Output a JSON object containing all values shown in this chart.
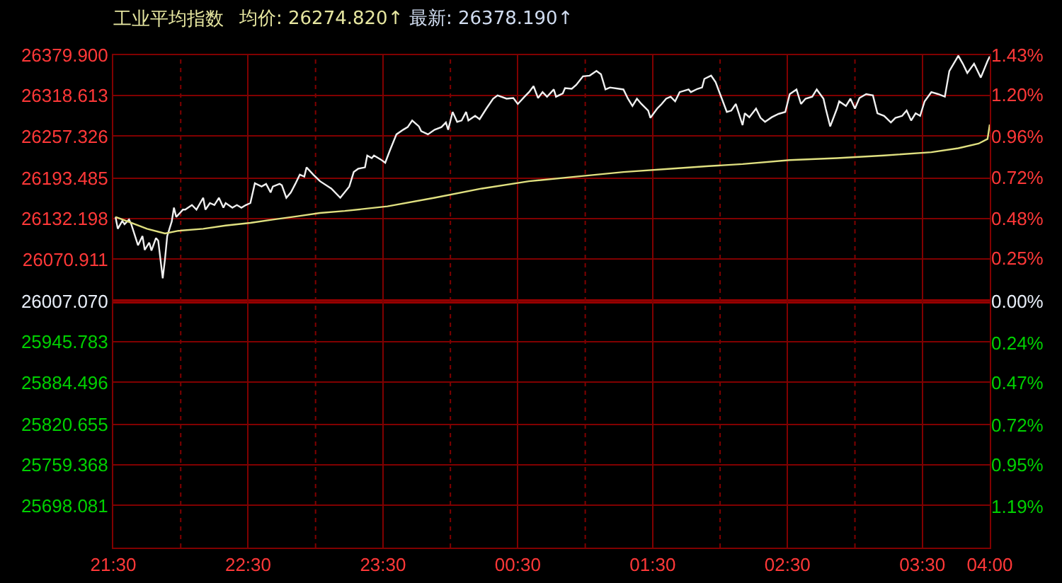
{
  "chart_data": {
    "type": "line",
    "title": "工业平均指数",
    "annotations": [
      "均价: 26274.820↑",
      "最新: 26378.190↑"
    ],
    "series": [
      {
        "color": "#f0f0f0",
        "x": [
          "2000-01-01T21:31",
          "2000-01-01T21:32",
          "2000-01-01T21:34",
          "2000-01-01T21:35",
          "2000-01-01T21:37",
          "2000-01-01T21:38",
          "2000-01-01T21:41",
          "2000-01-01T21:43",
          "2000-01-01T21:44",
          "2000-01-01T21:46",
          "2000-01-01T21:47",
          "2000-01-01T21:49",
          "2000-01-01T21:50",
          "2000-01-01T21:52",
          "2000-01-01T21:53",
          "2000-01-01T21:54",
          "2000-01-01T21:56",
          "2000-01-01T21:57",
          "2000-01-01T21:58",
          "2000-01-01T22:01",
          "2000-01-01T22:02",
          "2000-01-01T22:05",
          "2000-01-01T22:07",
          "2000-01-01T22:10",
          "2000-01-01T22:11",
          "2000-01-01T22:13",
          "2000-01-01T22:15",
          "2000-01-01T22:17",
          "2000-01-01T22:19",
          "2000-01-01T22:20",
          "2000-01-01T22:23",
          "2000-01-01T22:25",
          "2000-01-01T22:27",
          "2000-01-01T22:29",
          "2000-01-01T22:31",
          "2000-01-01T22:33",
          "2000-01-01T22:36",
          "2000-01-01T22:38",
          "2000-01-01T22:40",
          "2000-01-01T22:41",
          "2000-01-01T22:44",
          "2000-01-01T22:45",
          "2000-01-01T22:47",
          "2000-01-01T22:49",
          "2000-01-01T22:51",
          "2000-01-01T22:53",
          "2000-01-01T22:55",
          "2000-01-01T22:56",
          "2000-01-01T22:59",
          "2000-01-01T23:02",
          "2000-01-01T23:07",
          "2000-01-01T23:11",
          "2000-01-01T23:15",
          "2000-01-01T23:17",
          "2000-01-01T23:19",
          "2000-01-01T23:22",
          "2000-01-01T23:23",
          "2000-01-01T23:25",
          "2000-01-01T23:26",
          "2000-01-01T23:29",
          "2000-01-01T23:31",
          "2000-01-01T23:33",
          "2000-01-01T23:36",
          "2000-01-01T23:39",
          "2000-01-01T23:41",
          "2000-01-01T23:43",
          "2000-01-01T23:46",
          "2000-01-01T23:47",
          "2000-01-01T23:50",
          "2000-01-01T23:53",
          "2000-01-01T23:56",
          "2000-01-01T23:58",
          "2000-01-01T23:59",
          "2000-01-02T00:01",
          "2000-01-02T00:03",
          "2000-01-02T00:05",
          "2000-01-02T00:07",
          "2000-01-02T00:08",
          "2000-01-02T00:11",
          "2000-01-02T00:13",
          "2000-01-02T00:16",
          "2000-01-02T00:19",
          "2000-01-02T00:21",
          "2000-01-02T00:25",
          "2000-01-02T00:28",
          "2000-01-02T00:30",
          "2000-01-02T00:33",
          "2000-01-02T00:35",
          "2000-01-02T00:37",
          "2000-01-02T00:39",
          "2000-01-02T00:41",
          "2000-01-02T00:43",
          "2000-01-02T00:46",
          "2000-01-02T00:47",
          "2000-01-02T00:50",
          "2000-01-02T00:51",
          "2000-01-02T00:54",
          "2000-01-02T00:56",
          "2000-01-02T00:59",
          "2000-01-02T01:02",
          "2000-01-02T01:05",
          "2000-01-02T01:07",
          "2000-01-02T01:09",
          "2000-01-02T01:11",
          "2000-01-02T01:15",
          "2000-01-02T01:17",
          "2000-01-02T01:19",
          "2000-01-02T01:21",
          "2000-01-02T01:23",
          "2000-01-02T01:25",
          "2000-01-02T01:28",
          "2000-01-02T01:29",
          "2000-01-02T01:32",
          "2000-01-02T01:34",
          "2000-01-02T01:36",
          "2000-01-02T01:38",
          "2000-01-02T01:40",
          "2000-01-02T01:42",
          "2000-01-02T01:46",
          "2000-01-02T01:47",
          "2000-01-02T01:50",
          "2000-01-02T01:52",
          "2000-01-02T01:53",
          "2000-01-02T01:56",
          "2000-01-02T01:58",
          "2000-01-02T02:00",
          "2000-01-02T02:03",
          "2000-01-02T02:05",
          "2000-01-02T02:07",
          "2000-01-02T02:10",
          "2000-01-02T02:11",
          "2000-01-02T02:13",
          "2000-01-02T02:16",
          "2000-01-02T02:18",
          "2000-01-02T02:20",
          "2000-01-02T02:23",
          "2000-01-02T02:26",
          "2000-01-02T02:29",
          "2000-01-02T02:31",
          "2000-01-02T02:34",
          "2000-01-02T02:36",
          "2000-01-02T02:38",
          "2000-01-02T02:41",
          "2000-01-02T02:43",
          "2000-01-02T02:46",
          "2000-01-02T02:47",
          "2000-01-02T02:49",
          "2000-01-02T02:52",
          "2000-01-02T02:53",
          "2000-01-02T02:56",
          "2000-01-02T02:58",
          "2000-01-02T03:00",
          "2000-01-02T03:02",
          "2000-01-02T03:05",
          "2000-01-02T03:08",
          "2000-01-02T03:10",
          "2000-01-02T03:13",
          "2000-01-02T03:16",
          "2000-01-02T03:18",
          "2000-01-02T03:21",
          "2000-01-02T03:23",
          "2000-01-02T03:25",
          "2000-01-02T03:27",
          "2000-01-02T03:29",
          "2000-01-02T03:31",
          "2000-01-02T03:34",
          "2000-01-02T03:37",
          "2000-01-02T03:40",
          "2000-01-02T03:42",
          "2000-01-02T03:46",
          "2000-01-02T03:48",
          "2000-01-02T03:50",
          "2000-01-02T03:53",
          "2000-01-02T03:56",
          "2000-01-02T03:59",
          "2000-01-02T04:00"
        ],
        "values": [
          26135,
          26117,
          26129,
          26124,
          26131,
          26124,
          26092,
          26106,
          26085,
          26096,
          26084,
          26103,
          26099,
          26042,
          26071,
          26106,
          26128,
          26149,
          26135,
          26146,
          26146,
          26153,
          26146,
          26164,
          26146,
          26156,
          26153,
          26164,
          26149,
          26156,
          26149,
          26153,
          26149,
          26153,
          26156,
          26186,
          26181,
          26185,
          26172,
          26181,
          26185,
          26183,
          26164,
          26172,
          26185,
          26199,
          26196,
          26210,
          26199,
          26189,
          26178,
          26164,
          26181,
          26203,
          26208,
          26210,
          26228,
          26224,
          26228,
          26222,
          26217,
          26235,
          26260,
          26267,
          26271,
          26281,
          26272,
          26265,
          26260,
          26267,
          26271,
          26278,
          26267,
          26294,
          26279,
          26281,
          26294,
          26281,
          26288,
          26283,
          26299,
          26314,
          26319,
          26314,
          26315,
          26306,
          26317,
          26324,
          26333,
          26315,
          26324,
          26317,
          26328,
          26317,
          26322,
          26330,
          26329,
          26335,
          26348,
          26349,
          26356,
          26351,
          26328,
          26331,
          26329,
          26328,
          26314,
          26303,
          26314,
          26306,
          26296,
          26285,
          26299,
          26306,
          26314,
          26317,
          26310,
          26324,
          26328,
          26324,
          26329,
          26331,
          26344,
          26349,
          26339,
          26321,
          26294,
          26296,
          26306,
          26274,
          26292,
          26286,
          26299,
          26285,
          26279,
          26286,
          26291,
          26294,
          26321,
          26328,
          26306,
          26314,
          26317,
          26328,
          26314,
          26299,
          26272,
          26299,
          26310,
          26303,
          26314,
          26299,
          26315,
          26321,
          26319,
          26292,
          26288,
          26278,
          26285,
          26288,
          26296,
          26281,
          26292,
          26288,
          26310,
          26324,
          26321,
          26317,
          26356,
          26379,
          26367,
          26353,
          26367,
          26346,
          26371,
          26378
        ]
      },
      {
        "color": "#e0e080",
        "x": [
          "2000-01-01T21:31",
          "2000-01-01T21:38",
          "2000-01-01T21:45",
          "2000-01-01T21:53",
          "2000-01-01T21:59",
          "2000-01-01T22:10",
          "2000-01-01T22:20",
          "2000-01-01T22:31",
          "2000-01-01T22:41",
          "2000-01-01T22:52",
          "2000-01-01T23:02",
          "2000-01-01T23:13",
          "2000-01-01T23:32",
          "2000-01-01T23:53",
          "2000-01-02T00:14",
          "2000-01-02T00:35",
          "2000-01-02T00:56",
          "2000-01-02T01:17",
          "2000-01-02T01:38",
          "2000-01-02T01:55",
          "2000-01-02T02:10",
          "2000-01-02T02:31",
          "2000-01-02T02:52",
          "2000-01-02T03:13",
          "2000-01-02T03:34",
          "2000-01-02T03:46",
          "2000-01-02T03:55",
          "2000-01-02T03:59",
          "2000-01-02T04:00"
        ],
        "values": [
          26135,
          26126,
          26117,
          26110,
          26114,
          26117,
          26122,
          26126,
          26131,
          26136,
          26141,
          26144,
          26151,
          26164,
          26178,
          26189,
          26196,
          26203,
          26208,
          26212,
          26215,
          26221,
          26224,
          26228,
          26233,
          26239,
          26246,
          26253,
          26275
        ]
      }
    ],
    "xlim": [
      "2000-01-01T21:30",
      "2000-01-02T04:00"
    ],
    "xticks": [
      {
        "value": "2000-01-01T21:30",
        "label": "21:30"
      },
      {
        "value": "2000-01-01T22:00",
        "label": null
      },
      {
        "value": "2000-01-01T22:30",
        "label": "22:30"
      },
      {
        "value": "2000-01-01T23:00",
        "label": null
      },
      {
        "value": "2000-01-01T23:30",
        "label": "23:30"
      },
      {
        "value": "2000-01-02T00:00",
        "label": null
      },
      {
        "value": "2000-01-02T00:30",
        "label": "00:30"
      },
      {
        "value": "2000-01-02T01:00",
        "label": null
      },
      {
        "value": "2000-01-02T01:30",
        "label": "01:30"
      },
      {
        "value": "2000-01-02T02:00",
        "label": null
      },
      {
        "value": "2000-01-02T02:30",
        "label": "02:30"
      },
      {
        "value": "2000-01-02T03:00",
        "label": null
      },
      {
        "value": "2000-01-02T03:30",
        "label": "03:30"
      },
      {
        "value": "2000-01-02T04:00",
        "label": "04:00"
      }
    ],
    "ylim": [
      25634.2,
      26379.9
    ],
    "yticks": [
      {
        "value": 26379.9,
        "label": "26379.900"
      },
      {
        "value": 26318.613,
        "label": "26318.613"
      },
      {
        "value": 26257.326,
        "label": "26257.326"
      },
      {
        "value": 26193.485,
        "label": "26193.485"
      },
      {
        "value": 26132.198,
        "label": "26132.198"
      },
      {
        "value": 26070.911,
        "label": "26070.911"
      },
      {
        "value": 26007.07,
        "label": "26007.070"
      },
      {
        "value": 25945.783,
        "label": "25945.783"
      },
      {
        "value": 25884.496,
        "label": "25884.496"
      },
      {
        "value": 25820.655,
        "label": "25820.655"
      },
      {
        "value": 25759.368,
        "label": "25759.368"
      },
      {
        "value": 25698.081,
        "label": "25698.081"
      }
    ],
    "y2lim": [
      -1.43,
      1.43
    ],
    "y2ticks": [
      {
        "value": 1.43,
        "label": "1.43%"
      },
      {
        "value": 1.2,
        "label": "1.20%"
      },
      {
        "value": 0.96,
        "label": "0.96%"
      },
      {
        "value": 0.72,
        "label": "0.72%"
      },
      {
        "value": 0.48,
        "label": "0.48%"
      },
      {
        "value": 0.25,
        "label": "0.25%"
      },
      {
        "value": 0,
        "label": "0.00%"
      },
      {
        "value": -0.24,
        "label": "0.24%"
      },
      {
        "value": -0.47,
        "label": "0.47%"
      },
      {
        "value": -0.72,
        "label": "0.72%"
      },
      {
        "value": -0.95,
        "label": "0.95%"
      },
      {
        "value": -1.19,
        "label": "1.19%"
      }
    ],
    "ref_lines": [
      {
        "axis": "y",
        "value": 26007.07,
        "color": "#990000"
      }
    ],
    "grid": true,
    "marker": "none",
    "line_style": "solid"
  }
}
